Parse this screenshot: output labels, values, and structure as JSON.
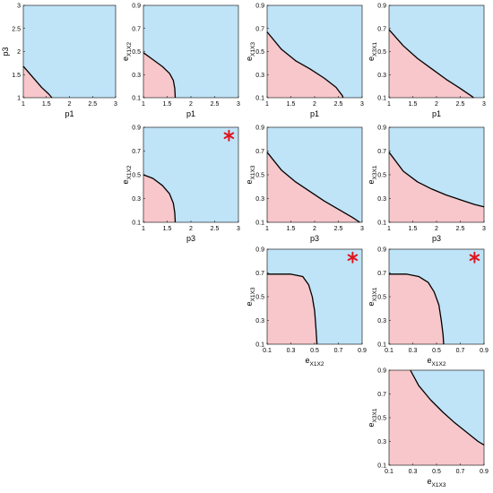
{
  "colors": {
    "region_upper": "#bfe3f7",
    "region_lower": "#f7c7cb",
    "boundary": "#000000",
    "marker": "#e0141e"
  },
  "chart_data": [
    {
      "id": "p1_p3",
      "type": "area",
      "grid": false,
      "xlabel": "p1",
      "ylabel": "p3",
      "x_ticks": [
        "1",
        "1.5",
        "2",
        "2.5",
        "3"
      ],
      "y_ticks": [
        "1",
        "1.5",
        "2",
        "2.5",
        "3"
      ],
      "xlim": [
        1,
        3
      ],
      "ylim": [
        1,
        3
      ],
      "boundary": [
        [
          1.0,
          1.68
        ],
        [
          1.2,
          1.45
        ],
        [
          1.4,
          1.22
        ],
        [
          1.55,
          1.08
        ],
        [
          1.62,
          1.0
        ]
      ],
      "marker": null
    },
    {
      "id": "p1_eX1X2",
      "type": "area",
      "grid": false,
      "xlabel": "p1",
      "ylabel_main": "e",
      "ylabel_sub": "X1X2",
      "x_ticks": [
        "1",
        "1.5",
        "2",
        "2.5",
        "3"
      ],
      "y_ticks": [
        "0.1",
        "0.3",
        "0.5",
        "0.7",
        "0.9"
      ],
      "xlim": [
        1,
        3
      ],
      "ylim": [
        0.1,
        0.9
      ],
      "boundary": [
        [
          1.0,
          0.49
        ],
        [
          1.2,
          0.43
        ],
        [
          1.4,
          0.37
        ],
        [
          1.55,
          0.31
        ],
        [
          1.63,
          0.25
        ],
        [
          1.66,
          0.18
        ],
        [
          1.67,
          0.1
        ]
      ],
      "marker": null
    },
    {
      "id": "p1_eX1X3",
      "type": "area",
      "grid": false,
      "xlabel": "p1",
      "ylabel_main": "e",
      "ylabel_sub": "X1X3",
      "x_ticks": [
        "1",
        "1.5",
        "2",
        "2.5",
        "3"
      ],
      "y_ticks": [
        "0.1",
        "0.3",
        "0.5",
        "0.7",
        "0.9"
      ],
      "xlim": [
        1,
        3
      ],
      "ylim": [
        0.1,
        0.9
      ],
      "boundary": [
        [
          1.0,
          0.67
        ],
        [
          1.3,
          0.52
        ],
        [
          1.6,
          0.42
        ],
        [
          1.9,
          0.35
        ],
        [
          2.2,
          0.27
        ],
        [
          2.45,
          0.19
        ],
        [
          2.58,
          0.12
        ],
        [
          2.6,
          0.1
        ]
      ],
      "marker": null
    },
    {
      "id": "p1_eX3X1",
      "type": "area",
      "grid": false,
      "xlabel": "p1",
      "ylabel_main": "e",
      "ylabel_sub": "X3X1",
      "x_ticks": [
        "1",
        "1.5",
        "2",
        "2.5",
        "3"
      ],
      "y_ticks": [
        "0.1",
        "0.3",
        "0.5",
        "0.7",
        "0.9"
      ],
      "xlim": [
        1,
        3
      ],
      "ylim": [
        0.1,
        0.9
      ],
      "boundary": [
        [
          1.0,
          0.69
        ],
        [
          1.3,
          0.55
        ],
        [
          1.6,
          0.44
        ],
        [
          1.9,
          0.35
        ],
        [
          2.2,
          0.26
        ],
        [
          2.5,
          0.18
        ],
        [
          2.75,
          0.11
        ],
        [
          2.78,
          0.1
        ]
      ],
      "marker": null
    },
    {
      "id": "p3_eX1X2",
      "type": "area",
      "grid": false,
      "xlabel": "p3",
      "ylabel_main": "e",
      "ylabel_sub": "X1X2",
      "x_ticks": [
        "1",
        "1.5",
        "2",
        "2.5",
        "3"
      ],
      "y_ticks": [
        "0.1",
        "0.3",
        "0.5",
        "0.7",
        "0.9"
      ],
      "xlim": [
        1,
        3
      ],
      "ylim": [
        0.1,
        0.9
      ],
      "boundary": [
        [
          1.0,
          0.5
        ],
        [
          1.2,
          0.47
        ],
        [
          1.4,
          0.41
        ],
        [
          1.55,
          0.34
        ],
        [
          1.63,
          0.26
        ],
        [
          1.66,
          0.18
        ],
        [
          1.67,
          0.1
        ]
      ],
      "marker": [
        2.8,
        0.83
      ]
    },
    {
      "id": "p3_eX1X3",
      "type": "area",
      "grid": false,
      "xlabel": "p3",
      "ylabel_main": "e",
      "ylabel_sub": "X1X3",
      "x_ticks": [
        "1",
        "1.5",
        "2",
        "2.5",
        "3"
      ],
      "y_ticks": [
        "0.1",
        "0.3",
        "0.5",
        "0.7",
        "0.9"
      ],
      "xlim": [
        1,
        3
      ],
      "ylim": [
        0.1,
        0.9
      ],
      "boundary": [
        [
          1.0,
          0.69
        ],
        [
          1.3,
          0.54
        ],
        [
          1.6,
          0.44
        ],
        [
          1.9,
          0.36
        ],
        [
          2.2,
          0.28
        ],
        [
          2.5,
          0.21
        ],
        [
          2.8,
          0.14
        ],
        [
          2.95,
          0.1
        ]
      ],
      "marker": null
    },
    {
      "id": "p3_eX3X1",
      "type": "area",
      "grid": false,
      "xlabel": "p3",
      "ylabel_main": "e",
      "ylabel_sub": "X3X1",
      "x_ticks": [
        "1",
        "1.5",
        "2",
        "2.5",
        "3"
      ],
      "y_ticks": [
        "0.1",
        "0.3",
        "0.5",
        "0.7",
        "0.9"
      ],
      "xlim": [
        1,
        3
      ],
      "ylim": [
        0.1,
        0.9
      ],
      "boundary": [
        [
          1.0,
          0.69
        ],
        [
          1.3,
          0.53
        ],
        [
          1.6,
          0.44
        ],
        [
          1.9,
          0.38
        ],
        [
          2.2,
          0.33
        ],
        [
          2.5,
          0.29
        ],
        [
          2.8,
          0.25
        ],
        [
          3.0,
          0.23
        ]
      ],
      "marker": null
    },
    {
      "id": "eX1X2_eX1X3",
      "type": "area",
      "grid": false,
      "xlabel_main": "e",
      "xlabel_sub": "X1X2",
      "ylabel_main": "e",
      "ylabel_sub": "X1X3",
      "x_ticks": [
        "0.1",
        "0.3",
        "0.5",
        "0.7",
        "0.9"
      ],
      "y_ticks": [
        "0.1",
        "0.3",
        "0.5",
        "0.7",
        "0.9"
      ],
      "xlim": [
        0.1,
        0.9
      ],
      "ylim": [
        0.1,
        0.9
      ],
      "boundary": [
        [
          0.1,
          0.69
        ],
        [
          0.3,
          0.69
        ],
        [
          0.4,
          0.67
        ],
        [
          0.45,
          0.6
        ],
        [
          0.48,
          0.5
        ],
        [
          0.5,
          0.38
        ],
        [
          0.51,
          0.25
        ],
        [
          0.52,
          0.1
        ]
      ],
      "marker": [
        0.82,
        0.83
      ]
    },
    {
      "id": "eX1X2_eX3X1",
      "type": "area",
      "grid": false,
      "xlabel_main": "e",
      "xlabel_sub": "X1X2",
      "ylabel_main": "e",
      "ylabel_sub": "X3X1",
      "x_ticks": [
        "0.1",
        "0.3",
        "0.5",
        "0.7",
        "0.9"
      ],
      "y_ticks": [
        "0.1",
        "0.3",
        "0.5",
        "0.7",
        "0.9"
      ],
      "xlim": [
        0.1,
        0.9
      ],
      "ylim": [
        0.1,
        0.9
      ],
      "boundary": [
        [
          0.1,
          0.69
        ],
        [
          0.25,
          0.69
        ],
        [
          0.35,
          0.67
        ],
        [
          0.43,
          0.62
        ],
        [
          0.48,
          0.54
        ],
        [
          0.52,
          0.43
        ],
        [
          0.54,
          0.3
        ],
        [
          0.555,
          0.18
        ],
        [
          0.56,
          0.1
        ]
      ],
      "marker": [
        0.82,
        0.83
      ]
    },
    {
      "id": "eX1X3_eX3X1",
      "type": "area",
      "grid": false,
      "xlabel_main": "e",
      "xlabel_sub": "X1X3",
      "ylabel_main": "e",
      "ylabel_sub": "X3X1",
      "x_ticks": [
        "0.1",
        "0.3",
        "0.5",
        "0.7",
        "0.9"
      ],
      "y_ticks": [
        "0.1",
        "0.3",
        "0.5",
        "0.7",
        "0.9"
      ],
      "xlim": [
        0.1,
        0.9
      ],
      "ylim": [
        0.1,
        0.9
      ],
      "boundary": [
        [
          0.28,
          0.9
        ],
        [
          0.35,
          0.77
        ],
        [
          0.45,
          0.65
        ],
        [
          0.55,
          0.55
        ],
        [
          0.65,
          0.46
        ],
        [
          0.75,
          0.38
        ],
        [
          0.85,
          0.3
        ],
        [
          0.9,
          0.27
        ]
      ],
      "marker": null
    }
  ]
}
